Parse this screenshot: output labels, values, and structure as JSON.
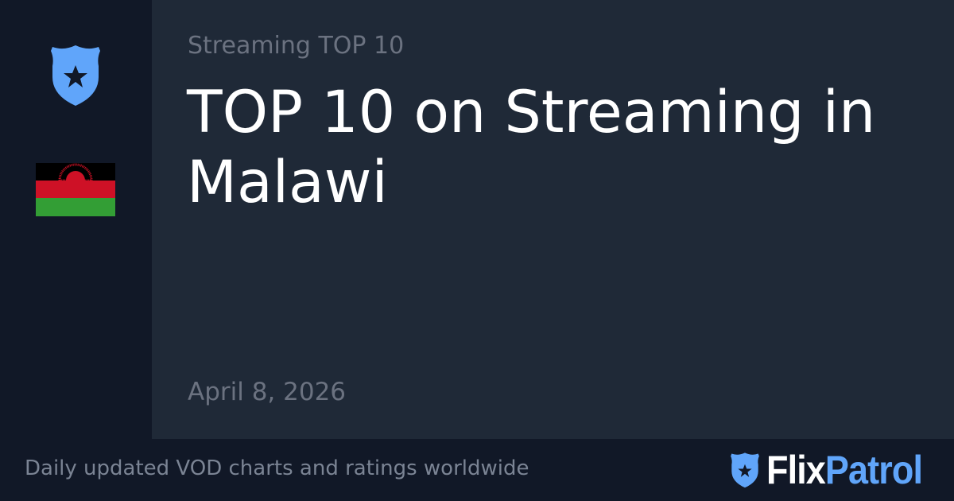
{
  "header": {
    "subtitle": "Streaming TOP 10",
    "title": "TOP 10 on Streaming in Malawi",
    "date": "April 8, 2026"
  },
  "sidebar": {
    "icons": [
      "shield-star-icon",
      "malawi-flag-icon"
    ]
  },
  "footer": {
    "tagline": "Daily updated VOD charts and ratings worldwide",
    "logo_part1": "Flix",
    "logo_part2": "Patrol"
  },
  "colors": {
    "accent": "#60a5fa",
    "sidebar": "#111827",
    "main": "#1f2937",
    "muted": "#6b7280"
  }
}
